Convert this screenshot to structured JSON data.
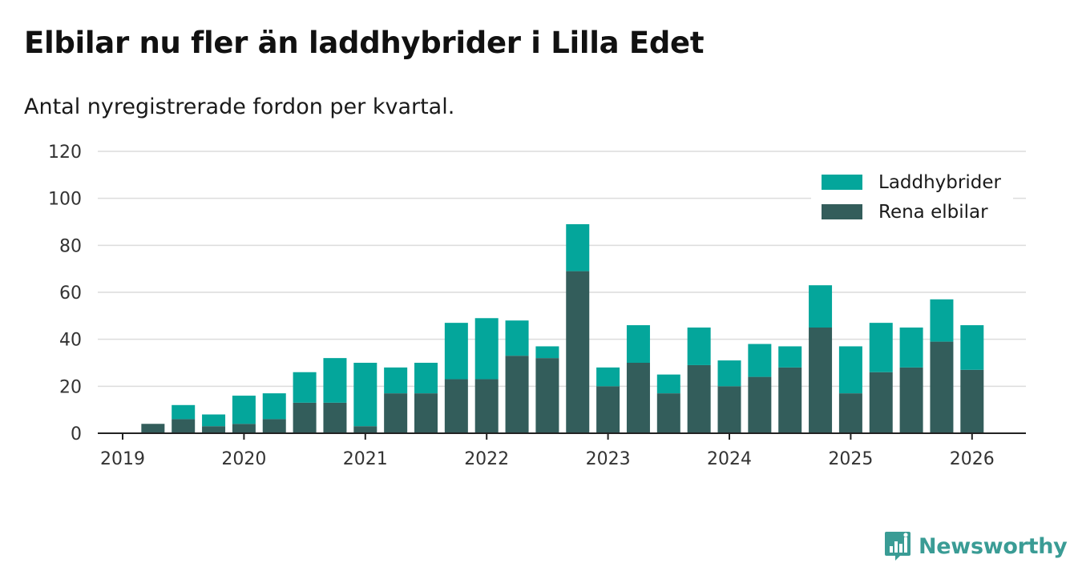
{
  "title": "Elbilar nu fler än laddhybrider i Lilla Edet",
  "subtitle": "Antal nyregistrerade fordon per kvartal.",
  "brand": {
    "name": "Newsworthy",
    "icon": "bar-chart-logo-icon"
  },
  "colors": {
    "laddhybrider": "#04a69b",
    "rena_elbilar": "#335d5b",
    "grid": "#dcdcdc",
    "axis": "#222222",
    "brand": "#3a9c95"
  },
  "chart_data": {
    "type": "bar",
    "stacked": true,
    "title": "Elbilar nu fler än laddhybrider i Lilla Edet",
    "subtitle": "Antal nyregistrerade fordon per kvartal.",
    "xlabel": "",
    "ylabel": "",
    "ylim": [
      0,
      120
    ],
    "yticks": [
      0,
      20,
      40,
      60,
      80,
      100,
      120
    ],
    "grid": true,
    "legend_position": "top-right",
    "x_tick_labels": [
      "2019",
      "2020",
      "2021",
      "2022",
      "2023",
      "2024",
      "2025",
      "2026"
    ],
    "categories": [
      "2019 Q1",
      "2019 Q2",
      "2019 Q3",
      "2019 Q4",
      "2020 Q1",
      "2020 Q2",
      "2020 Q3",
      "2020 Q4",
      "2021 Q1",
      "2021 Q2",
      "2021 Q3",
      "2021 Q4",
      "2022 Q1",
      "2022 Q2",
      "2022 Q3",
      "2022 Q4",
      "2023 Q1",
      "2023 Q2",
      "2023 Q3",
      "2023 Q4",
      "2024 Q1",
      "2024 Q2",
      "2024 Q3",
      "2024 Q4",
      "2025 Q1",
      "2025 Q2",
      "2025 Q3",
      "2025 Q4",
      "2026 Q1"
    ],
    "series": [
      {
        "name": "Rena elbilar",
        "color": "#335d5b",
        "values": [
          0,
          4,
          6,
          3,
          4,
          6,
          13,
          13,
          3,
          17,
          17,
          23,
          23,
          33,
          32,
          69,
          20,
          30,
          17,
          29,
          20,
          24,
          28,
          45,
          17,
          26,
          28,
          39,
          27
        ]
      },
      {
        "name": "Laddhybrider",
        "color": "#04a69b",
        "values": [
          0,
          0,
          6,
          5,
          12,
          11,
          13,
          19,
          27,
          11,
          13,
          24,
          26,
          15,
          5,
          20,
          8,
          16,
          8,
          16,
          11,
          14,
          9,
          18,
          20,
          21,
          17,
          18,
          19
        ]
      }
    ],
    "legend": [
      "Laddhybrider",
      "Rena elbilar"
    ]
  }
}
